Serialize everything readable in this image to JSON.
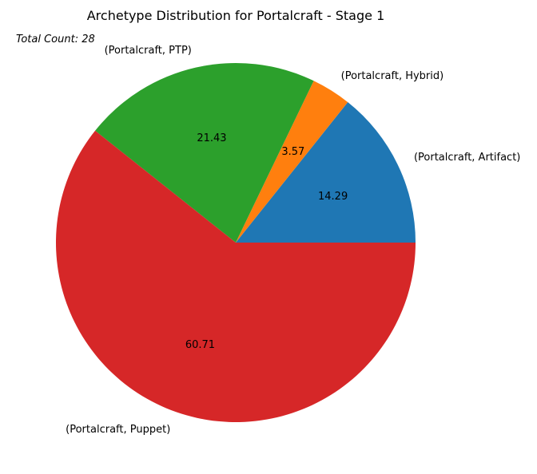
{
  "chart_data": {
    "type": "pie",
    "title": "Archetype Distribution for Portalcraft - Stage 1",
    "annotation": "Total Count: 28",
    "start_angle_deg": 0,
    "direction": "counterclockwise",
    "slices": [
      {
        "label": "(Portalcraft, Artifact)",
        "value": 14.29,
        "display": "14.29",
        "color": "#1f77b4"
      },
      {
        "label": "(Portalcraft, Hybrid)",
        "value": 3.57,
        "display": "3.57",
        "color": "#ff7f0e"
      },
      {
        "label": "(Portalcraft, PTP)",
        "value": 21.43,
        "display": "21.43",
        "color": "#2ca02c"
      },
      {
        "label": "(Portalcraft, Puppet)",
        "value": 60.71,
        "display": "60.71",
        "color": "#d62728"
      }
    ]
  }
}
